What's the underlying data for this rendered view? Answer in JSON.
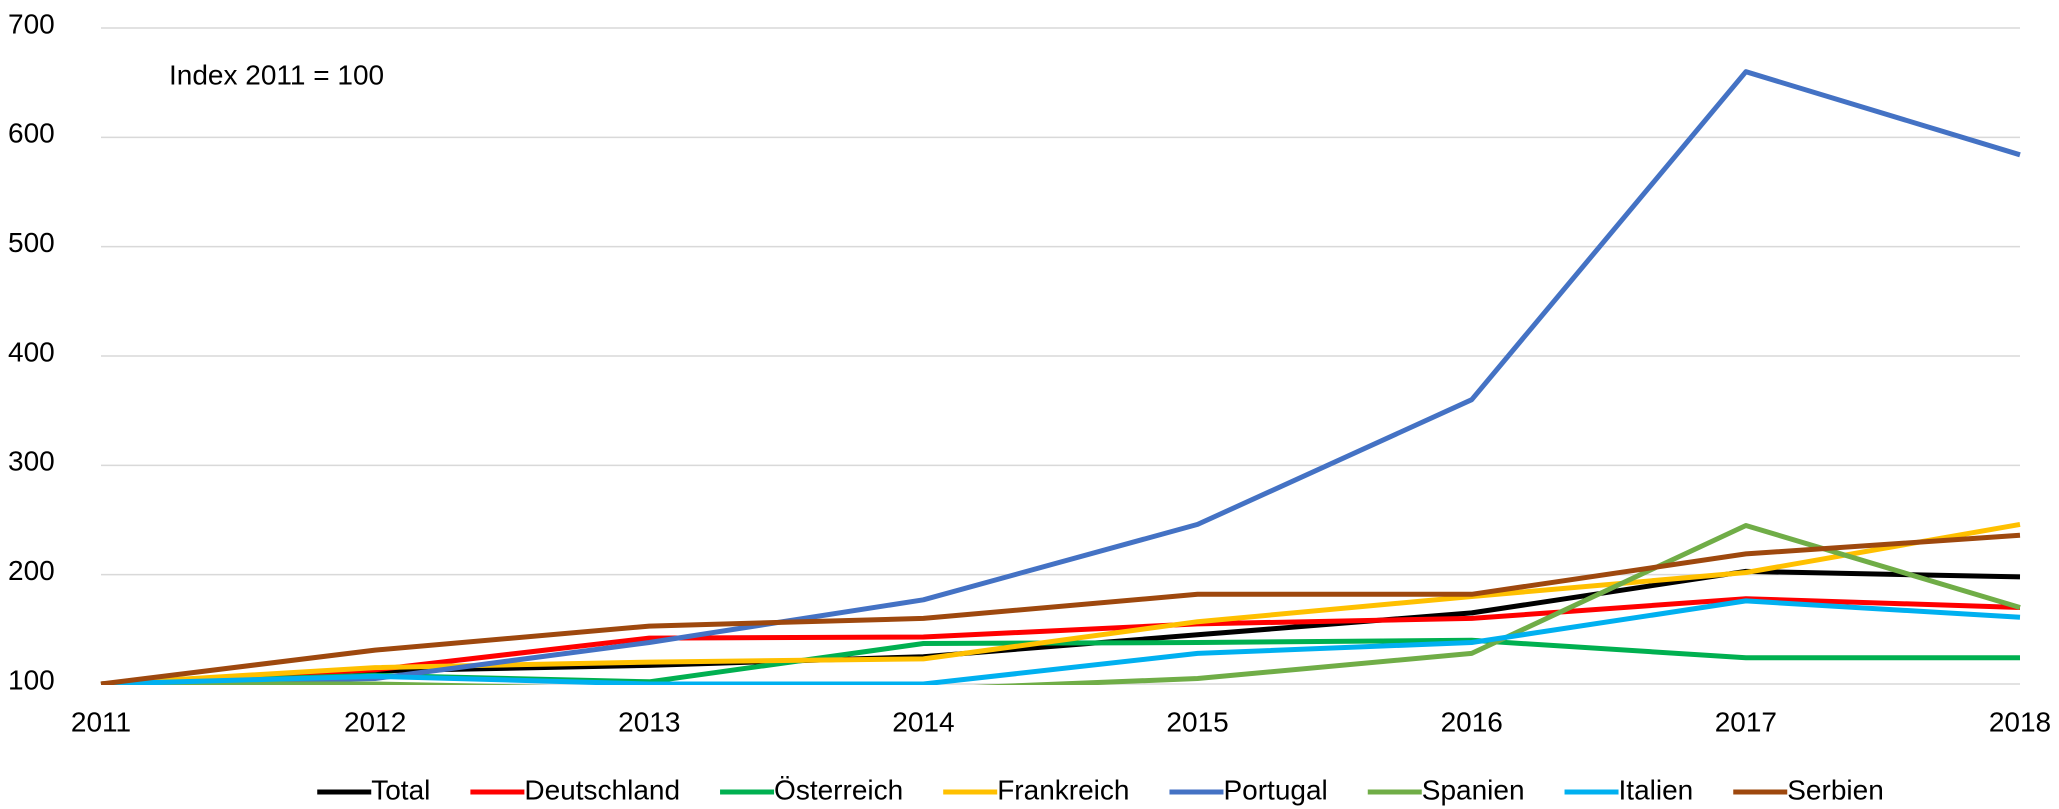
{
  "chart_data": {
    "type": "line",
    "annotation": "Index 2011 = 100",
    "x": [
      2011,
      2012,
      2013,
      2014,
      2015,
      2016,
      2017,
      2018
    ],
    "xlim": [
      2011,
      2018
    ],
    "xticks": [
      2011,
      2012,
      2013,
      2014,
      2015,
      2016,
      2017,
      2018
    ],
    "ylim": [
      100,
      700
    ],
    "yticks": [
      100,
      200,
      300,
      400,
      500,
      600,
      700
    ],
    "grid": true,
    "legend": "bottom",
    "series": [
      {
        "name": "Total",
        "color": "#000000",
        "values": [
          100,
          112,
          117,
          125,
          145,
          165,
          203,
          198
        ]
      },
      {
        "name": "Deutschland",
        "color": "#ff0000",
        "values": [
          100,
          113,
          142,
          143,
          155,
          160,
          178,
          170
        ]
      },
      {
        "name": "Österreich",
        "color": "#00b050",
        "values": [
          100,
          108,
          102,
          137,
          138,
          140,
          124,
          124
        ]
      },
      {
        "name": "Frankreich",
        "color": "#ffc000",
        "values": [
          100,
          115,
          120,
          123,
          157,
          180,
          202,
          246
        ]
      },
      {
        "name": "Portugal",
        "color": "#4472c4",
        "values": [
          100,
          105,
          138,
          177,
          246,
          360,
          660,
          584
        ]
      },
      {
        "name": "Spanien",
        "color": "#70ad47",
        "values": [
          100,
          100,
          95,
          95,
          105,
          128,
          245,
          170
        ]
      },
      {
        "name": "Italien",
        "color": "#00b0f0",
        "values": [
          100,
          107,
          100,
          100,
          128,
          138,
          176,
          161
        ]
      },
      {
        "name": "Serbien",
        "color": "#9e480e",
        "values": [
          100,
          131,
          153,
          160,
          182,
          182,
          219,
          236
        ]
      }
    ]
  }
}
